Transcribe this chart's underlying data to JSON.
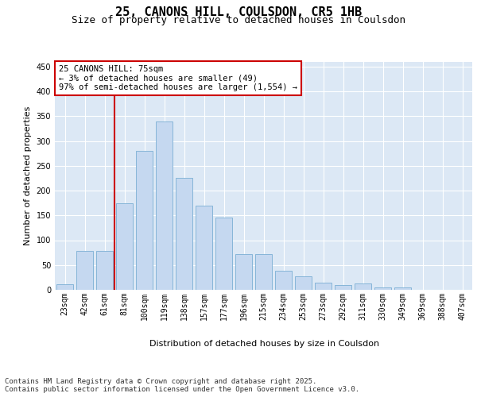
{
  "title": "25, CANONS HILL, COULSDON, CR5 1HB",
  "subtitle": "Size of property relative to detached houses in Coulsdon",
  "xlabel": "Distribution of detached houses by size in Coulsdon",
  "ylabel": "Number of detached properties",
  "categories": [
    "23sqm",
    "42sqm",
    "61sqm",
    "81sqm",
    "100sqm",
    "119sqm",
    "138sqm",
    "157sqm",
    "177sqm",
    "196sqm",
    "215sqm",
    "234sqm",
    "253sqm",
    "273sqm",
    "292sqm",
    "311sqm",
    "330sqm",
    "349sqm",
    "369sqm",
    "388sqm",
    "407sqm"
  ],
  "values": [
    12,
    78,
    78,
    175,
    280,
    340,
    225,
    170,
    145,
    72,
    72,
    38,
    28,
    15,
    10,
    13,
    5,
    5,
    0,
    0,
    0
  ],
  "bar_color": "#c5d8f0",
  "bar_edge_color": "#7aaed4",
  "vline_color": "#cc0000",
  "annotation_text": "25 CANONS HILL: 75sqm\n← 3% of detached houses are smaller (49)\n97% of semi-detached houses are larger (1,554) →",
  "annotation_box_color": "#ffffff",
  "annotation_box_edge_color": "#cc0000",
  "fig_background_color": "#ffffff",
  "plot_background_color": "#dce8f5",
  "grid_color": "#ffffff",
  "ylim": [
    0,
    460
  ],
  "yticks": [
    0,
    50,
    100,
    150,
    200,
    250,
    300,
    350,
    400,
    450
  ],
  "footnote": "Contains HM Land Registry data © Crown copyright and database right 2025.\nContains public sector information licensed under the Open Government Licence v3.0.",
  "title_fontsize": 11,
  "subtitle_fontsize": 9,
  "ylabel_fontsize": 8,
  "xlabel_fontsize": 8,
  "tick_fontsize": 7,
  "annotation_fontsize": 7.5,
  "footnote_fontsize": 6.5
}
